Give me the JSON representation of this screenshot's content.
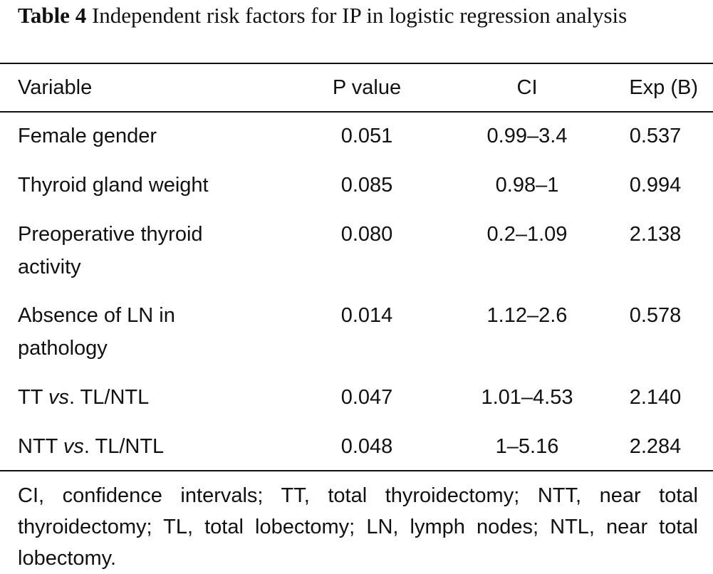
{
  "caption": {
    "label": "Table 4",
    "text": "Independent risk factors for IP in logistic regression analysis"
  },
  "table": {
    "headers": [
      "Variable",
      "P value",
      "CI",
      "Exp (B)"
    ],
    "rows": [
      {
        "variable_line1": "Female gender",
        "variable_line2": "",
        "p": "0.051",
        "ci": "0.99–3.4",
        "exp": "0.537"
      },
      {
        "variable_line1": "Thyroid gland weight",
        "variable_line2": "",
        "p": "0.085",
        "ci": "0.98–1",
        "exp": "0.994"
      },
      {
        "variable_line1": "Preoperative thyroid",
        "variable_line2": "activity",
        "p": "0.080",
        "ci": "0.2–1.09",
        "exp": "2.138"
      },
      {
        "variable_line1": "Absence of LN in",
        "variable_line2": "pathology",
        "p": "0.014",
        "ci": "1.12–2.6",
        "exp": "0.578"
      },
      {
        "variable_pre": "TT ",
        "variable_em": "vs",
        "variable_post": ". TL/NTL",
        "p": "0.047",
        "ci": "1.01–4.53",
        "exp": "2.140"
      },
      {
        "variable_pre": "NTT ",
        "variable_em": "vs",
        "variable_post": ". TL/NTL",
        "p": "0.048",
        "ci": "1–5.16",
        "exp": "2.284"
      }
    ]
  },
  "footnote": "CI, confidence intervals; TT, total thyroidectomy; NTT, near total thyroidectomy; TL, total lobectomy; LN, lymph nodes; NTL, near total lobectomy."
}
